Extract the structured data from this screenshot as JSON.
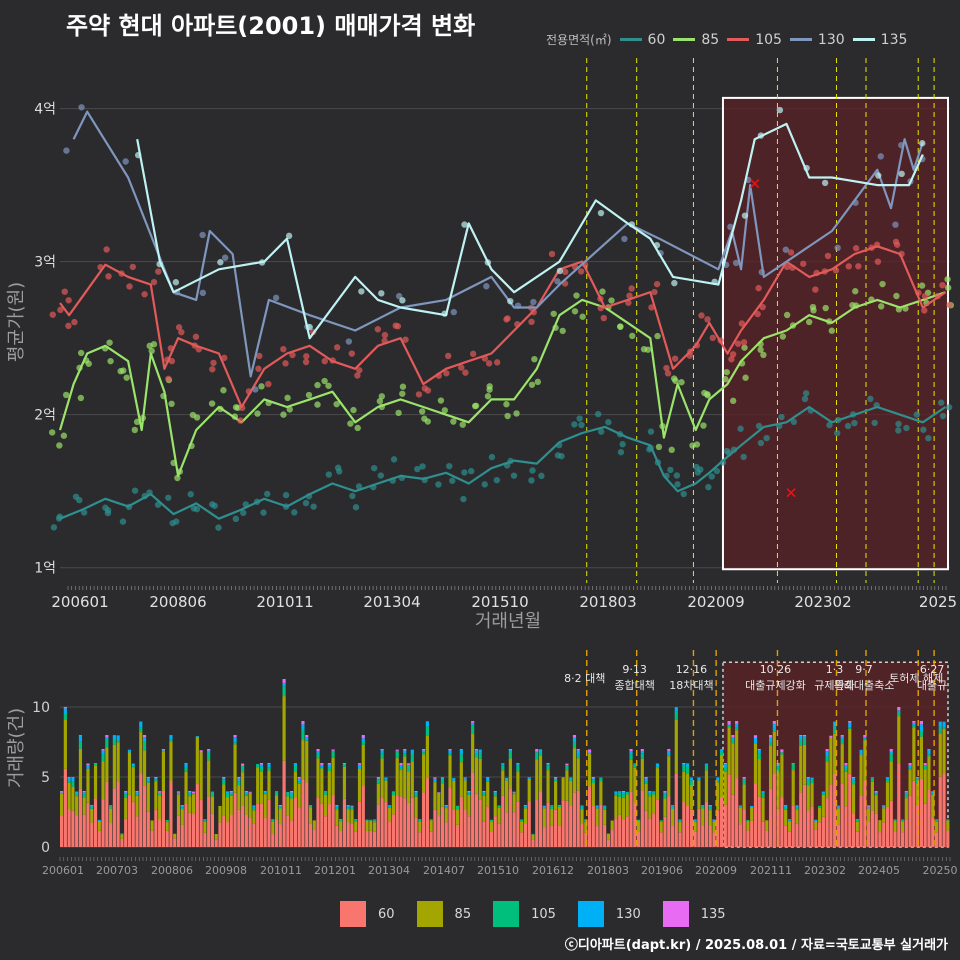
{
  "title": "주약 현대 아파트(2001) 매매가격 변화",
  "legend_title": "전용면적(㎡)",
  "footer": "ⓒ디아파트(dapt.kr) / 2025.08.01 / 자료=국토교통부 실거래가",
  "colors": {
    "line": {
      "60": "#2f8f8f",
      "85": "#9be36a",
      "105": "#e35a5a",
      "130": "#7f96bd",
      "135": "#bff3f3"
    },
    "bar": {
      "60": "#f8766d",
      "85": "#a3a500",
      "105": "#00bf7d",
      "130": "#00b0f6",
      "135": "#e76bf3"
    },
    "vline": "#e6e600",
    "event_line": "#e0a000",
    "highlight_fill": "#5a2226"
  },
  "chart_data": [
    {
      "type": "line",
      "title": "주약 현대 아파트(2001) 매매가격 변화",
      "xlabel": "거래년월",
      "ylabel": "평균가(원)",
      "x_ticks": [
        "200601",
        "200806",
        "201011",
        "201304",
        "201510",
        "201803",
        "202009",
        "202302",
        "2025"
      ],
      "y_ticks": [
        "1억",
        "2억",
        "3억",
        "4억"
      ],
      "ylim": [
        0.9,
        4.2
      ],
      "xlim": [
        2006.0,
        2025.6
      ],
      "legend_position": "top-right",
      "vertical_lines": [
        2017.6,
        2018.7,
        2019.95,
        2021.8,
        2023.1,
        2023.75,
        2024.9,
        2025.25
      ],
      "highlight_range": [
        2020.6,
        2025.6
      ],
      "series": [
        {
          "name": "60",
          "points": [
            [
              2006.0,
              1.32
            ],
            [
              2006.5,
              1.38
            ],
            [
              2007.0,
              1.45
            ],
            [
              2007.5,
              1.4
            ],
            [
              2008.0,
              1.48
            ],
            [
              2008.5,
              1.35
            ],
            [
              2009.0,
              1.42
            ],
            [
              2009.5,
              1.32
            ],
            [
              2010.0,
              1.38
            ],
            [
              2010.5,
              1.45
            ],
            [
              2011.0,
              1.4
            ],
            [
              2011.5,
              1.48
            ],
            [
              2012.0,
              1.55
            ],
            [
              2012.5,
              1.5
            ],
            [
              2013.0,
              1.55
            ],
            [
              2013.5,
              1.6
            ],
            [
              2014.0,
              1.58
            ],
            [
              2014.5,
              1.62
            ],
            [
              2015.0,
              1.55
            ],
            [
              2015.5,
              1.65
            ],
            [
              2016.0,
              1.7
            ],
            [
              2016.5,
              1.68
            ],
            [
              2017.0,
              1.82
            ],
            [
              2017.5,
              1.88
            ],
            [
              2018.0,
              1.92
            ],
            [
              2018.5,
              1.85
            ],
            [
              2019.0,
              1.8
            ],
            [
              2019.3,
              1.6
            ],
            [
              2019.6,
              1.5
            ],
            [
              2020.0,
              1.55
            ],
            [
              2020.3,
              1.62
            ],
            [
              2020.6,
              1.7
            ],
            [
              2021.0,
              1.8
            ],
            [
              2021.5,
              1.92
            ],
            [
              2022.0,
              1.95
            ],
            [
              2022.5,
              2.05
            ],
            [
              2023.0,
              1.95
            ],
            [
              2023.5,
              2.0
            ],
            [
              2024.0,
              2.05
            ],
            [
              2024.5,
              2.0
            ],
            [
              2025.0,
              1.95
            ],
            [
              2025.5,
              2.05
            ]
          ]
        },
        {
          "name": "85",
          "points": [
            [
              2006.0,
              1.9
            ],
            [
              2006.3,
              2.2
            ],
            [
              2006.6,
              2.4
            ],
            [
              2007.0,
              2.45
            ],
            [
              2007.5,
              2.35
            ],
            [
              2007.8,
              1.9
            ],
            [
              2008.0,
              2.4
            ],
            [
              2008.3,
              2.15
            ],
            [
              2008.6,
              1.6
            ],
            [
              2009.0,
              1.9
            ],
            [
              2009.5,
              2.05
            ],
            [
              2010.0,
              1.95
            ],
            [
              2010.5,
              2.1
            ],
            [
              2011.0,
              2.05
            ],
            [
              2011.5,
              2.1
            ],
            [
              2012.0,
              2.15
            ],
            [
              2012.5,
              1.95
            ],
            [
              2013.0,
              2.05
            ],
            [
              2013.5,
              2.1
            ],
            [
              2014.0,
              2.05
            ],
            [
              2014.5,
              2.0
            ],
            [
              2015.0,
              1.95
            ],
            [
              2015.5,
              2.1
            ],
            [
              2016.0,
              2.1
            ],
            [
              2016.5,
              2.3
            ],
            [
              2017.0,
              2.65
            ],
            [
              2017.5,
              2.75
            ],
            [
              2018.0,
              2.7
            ],
            [
              2018.5,
              2.6
            ],
            [
              2019.0,
              2.5
            ],
            [
              2019.3,
              1.85
            ],
            [
              2019.6,
              2.2
            ],
            [
              2020.0,
              1.9
            ],
            [
              2020.3,
              2.1
            ],
            [
              2020.7,
              2.2
            ],
            [
              2021.0,
              2.35
            ],
            [
              2021.5,
              2.5
            ],
            [
              2022.0,
              2.55
            ],
            [
              2022.5,
              2.65
            ],
            [
              2023.0,
              2.6
            ],
            [
              2023.5,
              2.7
            ],
            [
              2024.0,
              2.75
            ],
            [
              2024.5,
              2.7
            ],
            [
              2025.0,
              2.75
            ],
            [
              2025.5,
              2.8
            ]
          ]
        },
        {
          "name": "105",
          "points": [
            [
              2006.0,
              2.73
            ],
            [
              2006.2,
              2.65
            ],
            [
              2007.0,
              2.98
            ],
            [
              2007.5,
              2.9
            ],
            [
              2008.0,
              2.85
            ],
            [
              2008.3,
              2.3
            ],
            [
              2008.6,
              2.5
            ],
            [
              2009.0,
              2.45
            ],
            [
              2009.5,
              2.4
            ],
            [
              2010.0,
              2.05
            ],
            [
              2010.5,
              2.3
            ],
            [
              2011.0,
              2.4
            ],
            [
              2011.5,
              2.45
            ],
            [
              2012.0,
              2.35
            ],
            [
              2012.5,
              2.3
            ],
            [
              2013.0,
              2.45
            ],
            [
              2013.5,
              2.5
            ],
            [
              2014.0,
              2.2
            ],
            [
              2014.5,
              2.3
            ],
            [
              2015.0,
              2.35
            ],
            [
              2015.5,
              2.4
            ],
            [
              2016.0,
              2.55
            ],
            [
              2016.5,
              2.7
            ],
            [
              2017.0,
              2.95
            ],
            [
              2017.5,
              3.0
            ],
            [
              2018.0,
              2.7
            ],
            [
              2018.5,
              2.75
            ],
            [
              2019.0,
              2.8
            ],
            [
              2019.5,
              2.3
            ],
            [
              2020.0,
              2.45
            ],
            [
              2020.3,
              2.6
            ],
            [
              2020.7,
              2.4
            ],
            [
              2021.0,
              2.55
            ],
            [
              2021.5,
              2.75
            ],
            [
              2022.0,
              3.0
            ],
            [
              2022.5,
              2.9
            ],
            [
              2023.0,
              2.95
            ],
            [
              2023.5,
              3.05
            ],
            [
              2024.0,
              3.1
            ],
            [
              2024.5,
              3.05
            ],
            [
              2025.0,
              2.7
            ],
            [
              2025.5,
              2.8
            ]
          ]
        },
        {
          "name": "130",
          "points": [
            [
              2006.3,
              3.8
            ],
            [
              2006.6,
              3.98
            ],
            [
              2007.5,
              3.55
            ],
            [
              2008.5,
              2.8
            ],
            [
              2009.0,
              2.75
            ],
            [
              2009.3,
              3.2
            ],
            [
              2009.8,
              3.05
            ],
            [
              2010.2,
              2.25
            ],
            [
              2010.6,
              2.75
            ],
            [
              2011.5,
              2.65
            ],
            [
              2012.5,
              2.55
            ],
            [
              2013.5,
              2.7
            ],
            [
              2014.5,
              2.75
            ],
            [
              2015.5,
              2.9
            ],
            [
              2016.0,
              2.7
            ],
            [
              2016.5,
              2.7
            ],
            [
              2017.0,
              2.85
            ],
            [
              2018.5,
              3.25
            ],
            [
              2019.2,
              3.15
            ],
            [
              2020.5,
              2.95
            ],
            [
              2020.8,
              3.2
            ],
            [
              2021.0,
              2.95
            ],
            [
              2021.2,
              3.5
            ],
            [
              2021.5,
              2.9
            ],
            [
              2022.0,
              3.0
            ],
            [
              2023.0,
              3.2
            ],
            [
              2023.5,
              3.4
            ],
            [
              2024.0,
              3.6
            ],
            [
              2024.3,
              3.35
            ],
            [
              2024.6,
              3.8
            ],
            [
              2024.8,
              3.6
            ],
            [
              2025.0,
              3.78
            ]
          ]
        },
        {
          "name": "135",
          "points": [
            [
              2007.7,
              3.8
            ],
            [
              2008.2,
              3.0
            ],
            [
              2008.5,
              2.8
            ],
            [
              2009.5,
              2.95
            ],
            [
              2010.5,
              3.0
            ],
            [
              2011.0,
              3.15
            ],
            [
              2011.5,
              2.5
            ],
            [
              2012.5,
              2.9
            ],
            [
              2013.0,
              2.75
            ],
            [
              2013.5,
              2.7
            ],
            [
              2014.5,
              2.65
            ],
            [
              2015.0,
              3.25
            ],
            [
              2015.5,
              2.95
            ],
            [
              2016.0,
              2.8
            ],
            [
              2017.0,
              3.0
            ],
            [
              2017.8,
              3.4
            ],
            [
              2018.5,
              3.25
            ],
            [
              2019.0,
              3.15
            ],
            [
              2019.5,
              2.9
            ],
            [
              2020.5,
              2.85
            ],
            [
              2021.0,
              3.4
            ],
            [
              2021.3,
              3.8
            ],
            [
              2022.0,
              3.9
            ],
            [
              2022.5,
              3.55
            ],
            [
              2023.0,
              3.55
            ],
            [
              2024.0,
              3.5
            ],
            [
              2024.7,
              3.5
            ],
            [
              2025.0,
              3.7
            ]
          ]
        }
      ],
      "markers": [
        {
          "x": 2021.3,
          "y": 3.51
        },
        {
          "x": 2022.1,
          "y": 1.49
        }
      ]
    },
    {
      "type": "bar",
      "ylabel": "거래량(건)",
      "x_ticks": [
        "200601",
        "200703",
        "200806",
        "200908",
        "201011",
        "201201",
        "201304",
        "201407",
        "201510",
        "201612",
        "201803",
        "201906",
        "202009",
        "202111",
        "202302",
        "202405",
        "20250"
      ],
      "y_ticks": [
        "0",
        "5",
        "10"
      ],
      "ylim": [
        0,
        13.5
      ],
      "months": 236,
      "stack_order": [
        "60",
        "85",
        "105",
        "130",
        "135"
      ],
      "events": [
        {
          "x": 2017.6,
          "label": "8·2 대책",
          "row": 2
        },
        {
          "x": 2018.7,
          "label": "9·13\n종합대책",
          "row": 1
        },
        {
          "x": 2019.95,
          "label": "12·16\n18차대책",
          "row": 1
        },
        {
          "x": 2020.45,
          "label": "",
          "row": 1
        },
        {
          "x": 2021.8,
          "label": "10·26\n대출규제강화",
          "row": 1
        },
        {
          "x": 2023.1,
          "label": "1·3\n규제완화",
          "row": 1
        },
        {
          "x": 2023.75,
          "label": "9·7\n특례대출축소",
          "row": 1
        },
        {
          "x": 2024.9,
          "label": "토허제 해제",
          "row": 2
        },
        {
          "x": 2025.25,
          "label": "6·27\n대출규",
          "row": 1
        }
      ],
      "highlight_range": [
        2020.6,
        2025.6
      ]
    }
  ]
}
